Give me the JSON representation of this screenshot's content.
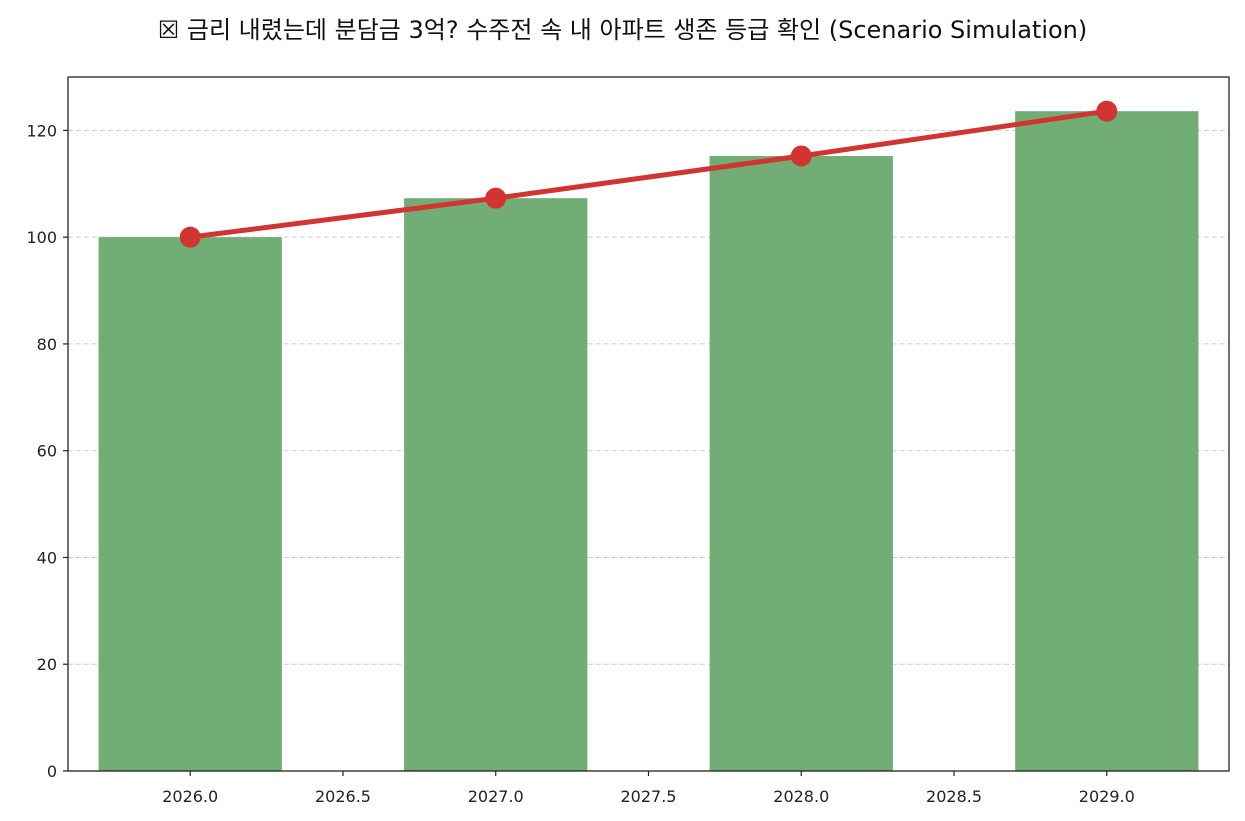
{
  "chart_data": {
    "type": "bar",
    "title": "☒ 금리 내렸는데 분담금 3억? 수주전 속 내 아파트 생존 등급 확인 (Scenario Simulation)",
    "xlabel": "",
    "ylabel": "",
    "x": [
      2026,
      2027,
      2028,
      2029
    ],
    "xlim": [
      2025.6,
      2029.4
    ],
    "ylim": [
      0,
      130
    ],
    "xticks": [
      "2026.0",
      "2026.5",
      "2027.0",
      "2027.5",
      "2028.0",
      "2028.5",
      "2029.0"
    ],
    "yticks": [
      "0",
      "20",
      "40",
      "60",
      "80",
      "100",
      "120"
    ],
    "grid": "y-dashed",
    "series": [
      {
        "kind": "bar",
        "values": [
          100,
          107.3,
          115.2,
          123.6
        ],
        "color": "#73ad76"
      },
      {
        "kind": "line",
        "values": [
          100,
          107.3,
          115.2,
          123.6
        ],
        "color": "#d13532"
      }
    ]
  }
}
